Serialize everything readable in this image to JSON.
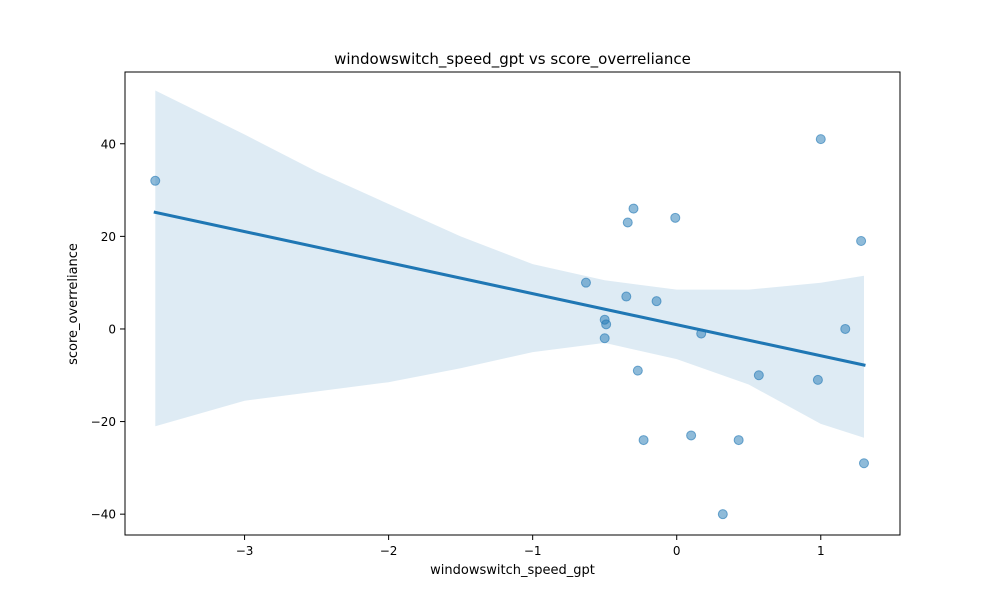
{
  "chart_data": {
    "type": "scatter",
    "title": "windowswitch_speed_gpt vs score_overreliance",
    "xlabel": "windowswitch_speed_gpt",
    "ylabel": "score_overreliance",
    "xlim": [
      -3.83,
      1.55
    ],
    "ylim": [
      -44.5,
      55.5
    ],
    "xticks": [
      -3,
      -2,
      -1,
      0,
      1
    ],
    "yticks": [
      -40,
      -20,
      0,
      20,
      40
    ],
    "xtick_labels": [
      "−3",
      "−2",
      "−1",
      "0",
      "1"
    ],
    "ytick_labels": [
      "−40",
      "−20",
      "0",
      "20",
      "40"
    ],
    "grid": false,
    "legend": "none",
    "point_color": "#1f77b4",
    "line_color": "#1f77b4",
    "band_color": "#1f77b4",
    "points": [
      {
        "x": -3.62,
        "y": 32
      },
      {
        "x": -0.63,
        "y": 10
      },
      {
        "x": -0.5,
        "y": 2
      },
      {
        "x": -0.49,
        "y": 1
      },
      {
        "x": -0.5,
        "y": -2
      },
      {
        "x": -0.35,
        "y": 7
      },
      {
        "x": -0.34,
        "y": 23
      },
      {
        "x": -0.3,
        "y": 26
      },
      {
        "x": -0.27,
        "y": -9
      },
      {
        "x": -0.23,
        "y": -24
      },
      {
        "x": -0.14,
        "y": 6
      },
      {
        "x": -0.01,
        "y": 24
      },
      {
        "x": 0.1,
        "y": -23
      },
      {
        "x": 0.17,
        "y": -1
      },
      {
        "x": 0.32,
        "y": -40
      },
      {
        "x": 0.43,
        "y": -24
      },
      {
        "x": 0.57,
        "y": -10
      },
      {
        "x": 0.98,
        "y": -11
      },
      {
        "x": 1.0,
        "y": 41
      },
      {
        "x": 1.17,
        "y": 0
      },
      {
        "x": 1.28,
        "y": 19
      },
      {
        "x": 1.3,
        "y": -29
      }
    ],
    "regression": {
      "x": [
        -3.62,
        1.3
      ],
      "y": [
        25.2,
        -7.8
      ]
    },
    "confidence_band": {
      "x": [
        -3.62,
        -3.0,
        -2.5,
        -2.0,
        -1.5,
        -1.0,
        -0.5,
        0.0,
        0.5,
        1.0,
        1.3
      ],
      "upper": [
        51.5,
        42.0,
        34.0,
        27.0,
        20.0,
        14.0,
        10.5,
        8.5,
        8.5,
        10.0,
        11.5
      ],
      "lower": [
        -21.0,
        -15.5,
        -13.5,
        -11.5,
        -8.5,
        -5.0,
        -3.0,
        -6.5,
        -12.0,
        -20.5,
        -23.5
      ]
    }
  }
}
